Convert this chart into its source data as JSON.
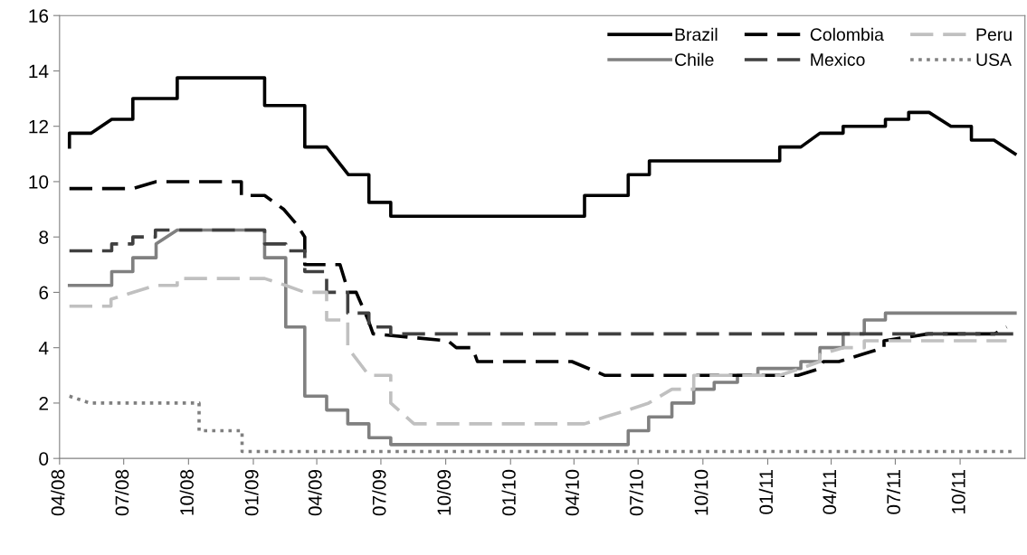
{
  "chart_data": {
    "type": "line",
    "xlim": [
      "2008-04-01",
      "2012-01-01"
    ],
    "xticks": [
      {
        "value": "2008-04-01",
        "label": "04/08"
      },
      {
        "value": "2008-07-01",
        "label": "07/08"
      },
      {
        "value": "2008-10-01",
        "label": "10/08"
      },
      {
        "value": "2009-01-01",
        "label": "01/09"
      },
      {
        "value": "2009-04-01",
        "label": "04/09"
      },
      {
        "value": "2009-07-01",
        "label": "07/09"
      },
      {
        "value": "2009-10-01",
        "label": "10/09"
      },
      {
        "value": "2010-01-01",
        "label": "01/10"
      },
      {
        "value": "2010-04-01",
        "label": "04/10"
      },
      {
        "value": "2010-07-01",
        "label": "07/10"
      },
      {
        "value": "2010-10-01",
        "label": "10/10"
      },
      {
        "value": "2011-01-01",
        "label": "01/11"
      },
      {
        "value": "2011-04-01",
        "label": "04/11"
      },
      {
        "value": "2011-07-01",
        "label": "07/11"
      },
      {
        "value": "2011-10-01",
        "label": "10/11"
      }
    ],
    "ylim": [
      0,
      16
    ],
    "yticks": [
      0,
      2,
      4,
      6,
      8,
      10,
      12,
      14,
      16
    ],
    "grid": false,
    "legend": "top right",
    "marker": "none",
    "series": [
      {
        "name": "Brazil",
        "color": "#000000",
        "line_style": "solid",
        "x": [
          "2008-04-15",
          "2008-04-15",
          "2008-05-16",
          "2008-06-14",
          "2008-07-14",
          "2008-07-14",
          "2008-09-15",
          "2008-09-15",
          "2009-01-17",
          "2009-01-17",
          "2009-03-15",
          "2009-03-15",
          "2009-04-15",
          "2009-05-16",
          "2009-06-14",
          "2009-06-14",
          "2009-07-15",
          "2009-07-15",
          "2010-04-16",
          "2010-04-16",
          "2010-06-17",
          "2010-06-17",
          "2010-07-17",
          "2010-07-17",
          "2011-01-18",
          "2011-01-18",
          "2011-02-17",
          "2011-03-16",
          "2011-04-18",
          "2011-04-18",
          "2011-06-17",
          "2011-06-17",
          "2011-07-20",
          "2011-07-20",
          "2011-08-18",
          "2011-09-18",
          "2011-10-17",
          "2011-10-17",
          "2011-11-18",
          "2011-12-18"
        ],
        "values": [
          11.25,
          11.75,
          11.75,
          12.25,
          12.25,
          13,
          13,
          13.75,
          13.75,
          12.75,
          12.75,
          11.25,
          11.25,
          10.25,
          10.25,
          9.25,
          9.25,
          8.75,
          8.75,
          9.5,
          9.5,
          10.25,
          10.25,
          10.75,
          10.75,
          11.25,
          11.25,
          11.75,
          11.75,
          12,
          12,
          12.25,
          12.25,
          12.5,
          12.5,
          12,
          12,
          11.5,
          11.5,
          11
        ]
      },
      {
        "name": "Chile",
        "color": "#808080",
        "line_style": "solid",
        "x": [
          "2008-04-15",
          "2008-06-14",
          "2008-06-14",
          "2008-07-14",
          "2008-07-14",
          "2008-08-16",
          "2008-08-16",
          "2008-09-15",
          "2009-01-17",
          "2009-01-17",
          "2009-02-16",
          "2009-02-16",
          "2009-03-15",
          "2009-03-15",
          "2009-04-15",
          "2009-04-15",
          "2009-05-15",
          "2009-05-15",
          "2009-06-14",
          "2009-06-14",
          "2009-07-15",
          "2009-07-15",
          "2010-06-17",
          "2010-06-17",
          "2010-07-16",
          "2010-07-16",
          "2010-08-18",
          "2010-08-18",
          "2010-09-18",
          "2010-09-18",
          "2010-10-17",
          "2010-10-17",
          "2010-11-19",
          "2010-11-19",
          "2010-12-18",
          "2010-12-18",
          "2011-02-17",
          "2011-02-17",
          "2011-03-16",
          "2011-03-16",
          "2011-04-18",
          "2011-04-18",
          "2011-05-18",
          "2011-05-18",
          "2011-06-17",
          "2011-06-17",
          "2011-12-18"
        ],
        "values": [
          6.25,
          6.25,
          6.75,
          6.75,
          7.25,
          7.25,
          7.75,
          8.25,
          8.25,
          7.25,
          7.25,
          4.75,
          4.75,
          2.25,
          2.25,
          1.75,
          1.75,
          1.25,
          1.25,
          0.75,
          0.75,
          0.5,
          0.5,
          1,
          1,
          1.5,
          1.5,
          2,
          2,
          2.5,
          2.5,
          2.75,
          2.75,
          3,
          3,
          3.25,
          3.25,
          3.5,
          3.5,
          4,
          4,
          4.5,
          4.5,
          5,
          5,
          5.25,
          5.25
        ]
      },
      {
        "name": "Colombia",
        "color": "#000000",
        "line_style": "dashed",
        "x": [
          "2008-04-15",
          "2008-07-14",
          "2008-08-16",
          "2008-12-15",
          "2008-12-15",
          "2009-01-17",
          "2009-02-13",
          "2009-03-02",
          "2009-03-15",
          "2009-03-15",
          "2009-05-04",
          "2009-05-16",
          "2009-05-27",
          "2009-06-13",
          "2009-06-20",
          "2009-10-04",
          "2009-10-16",
          "2009-11-08",
          "2009-11-15",
          "2010-03-29",
          "2010-05-15",
          "2011-02-13",
          "2011-03-16",
          "2011-03-21",
          "2011-04-12",
          "2011-05-14",
          "2011-06-15",
          "2011-06-15",
          "2011-08-17",
          "2011-11-19",
          "2011-12-06"
        ],
        "values": [
          9.75,
          9.75,
          10,
          10,
          9.5,
          9.5,
          9,
          8.5,
          8,
          7,
          7,
          6,
          6,
          5,
          4.5,
          4.25,
          4,
          4,
          3.5,
          3.5,
          3,
          3,
          3.25,
          3.5,
          3.5,
          3.75,
          4,
          4.25,
          4.5,
          4.5,
          4.75
        ]
      },
      {
        "name": "Mexico",
        "color": "#404040",
        "line_style": "dashed",
        "x": [
          "2008-04-15",
          "2008-06-14",
          "2008-06-14",
          "2008-07-14",
          "2008-07-14",
          "2008-08-15",
          "2008-08-15",
          "2009-01-17",
          "2009-01-17",
          "2009-02-16",
          "2009-02-16",
          "2009-03-15",
          "2009-03-15",
          "2009-04-15",
          "2009-04-15",
          "2009-05-15",
          "2009-05-15",
          "2009-06-14",
          "2009-06-14",
          "2009-07-15",
          "2009-07-15",
          "2011-12-18"
        ],
        "values": [
          7.5,
          7.5,
          7.75,
          7.75,
          8,
          8,
          8.25,
          8.25,
          7.75,
          7.75,
          7.5,
          7.5,
          6.75,
          6.75,
          6,
          6,
          5.25,
          5.25,
          4.75,
          4.75,
          4.5,
          4.5
        ]
      },
      {
        "name": "Peru",
        "color": "#c0c0c0",
        "line_style": "dashed",
        "x": [
          "2008-04-15",
          "2008-06-13",
          "2008-06-13",
          "2008-07-14",
          "2008-08-15",
          "2008-09-15",
          "2008-09-15",
          "2009-01-17",
          "2009-02-16",
          "2009-03-15",
          "2009-04-15",
          "2009-04-15",
          "2009-05-15",
          "2009-05-15",
          "2009-06-14",
          "2009-07-15",
          "2009-07-15",
          "2009-08-17",
          "2010-04-16",
          "2010-05-15",
          "2010-06-17",
          "2010-07-16",
          "2010-08-18",
          "2010-09-18",
          "2010-09-18",
          "2011-01-18",
          "2011-02-17",
          "2011-03-16",
          "2011-03-16",
          "2011-04-18",
          "2011-05-18",
          "2011-05-18",
          "2011-12-06"
        ],
        "values": [
          5.5,
          5.5,
          5.75,
          6,
          6.25,
          6.25,
          6.5,
          6.5,
          6.25,
          6,
          6,
          5,
          5,
          4,
          3,
          3,
          2,
          1.25,
          1.25,
          1.5,
          1.75,
          2,
          2.5,
          2.5,
          3,
          3,
          3.25,
          3.5,
          3.75,
          4,
          4,
          4.25,
          4.25
        ]
      },
      {
        "name": "USA",
        "color": "#808080",
        "line_style": "dotted",
        "x": [
          "2008-04-15",
          "2008-05-14",
          "2008-10-16",
          "2008-10-16",
          "2008-12-16",
          "2008-12-16",
          "2011-12-18"
        ],
        "values": [
          2.25,
          2,
          2,
          1,
          1,
          0.25,
          0.25
        ]
      }
    ]
  }
}
